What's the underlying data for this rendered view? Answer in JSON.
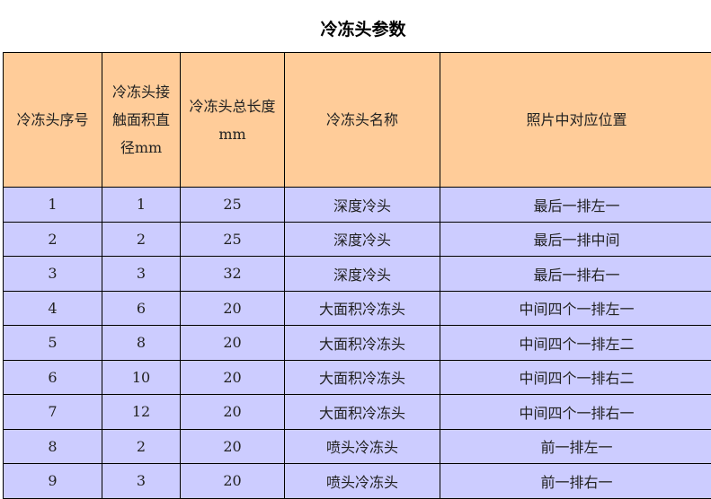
{
  "title": "冷冻头参数",
  "table": {
    "headers": [
      "冷冻头序号",
      "冷冻头接触面积直径mm",
      "冷冻头总长度 mm",
      "冷冻头名称",
      "照片中对应位置"
    ],
    "rows": [
      [
        "1",
        "1",
        "25",
        "深度冷头",
        "最后一排左一"
      ],
      [
        "2",
        "2",
        "25",
        "深度冷头",
        "最后一排中间"
      ],
      [
        "3",
        "3",
        "32",
        "深度冷头",
        "最后一排右一"
      ],
      [
        "4",
        "6",
        "20",
        "大面积冷冻头",
        "中间四个一排左一"
      ],
      [
        "5",
        "8",
        "20",
        "大面积冷冻头",
        "中间四个一排左二"
      ],
      [
        "6",
        "10",
        "20",
        "大面积冷冻头",
        "中间四个一排右二"
      ],
      [
        "7",
        "12",
        "20",
        "大面积冷冻头",
        "中间四个一排右一"
      ],
      [
        "8",
        "2",
        "20",
        "喷头冷冻头",
        "前一排左一"
      ],
      [
        "9",
        "3",
        "20",
        "喷头冷冻头",
        "前一排右一"
      ]
    ]
  },
  "colors": {
    "header_bg": "#FFCC99",
    "row_bg": "#CCCCFF"
  }
}
